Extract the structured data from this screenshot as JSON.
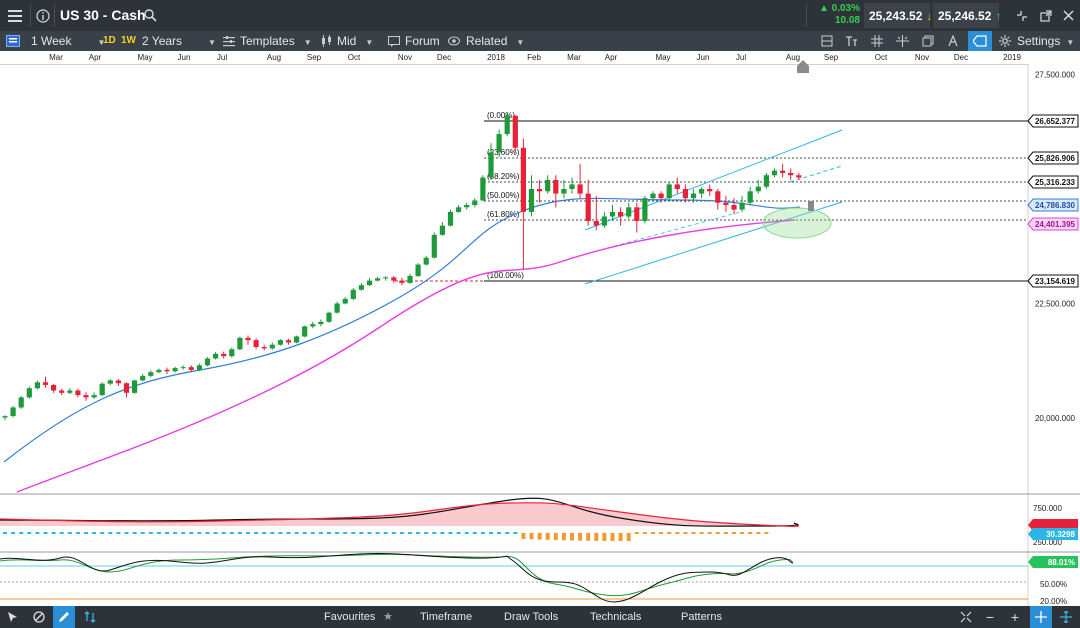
{
  "header": {
    "symbol": "US 30 - Cash",
    "change_pct": "▲ 0.03%",
    "change_pts": "10.08",
    "sell_price": "25,243.52",
    "buy_price": "25,246.52"
  },
  "toolbar": {
    "timeframe": "1 Week",
    "tf_1d": "1D",
    "tf_1w": "1W",
    "range": "2 Years",
    "templates": "Templates",
    "price_type": "Mid",
    "forum": "Forum",
    "related": "Related",
    "settings": "Settings"
  },
  "time_axis": [
    "Mar",
    "Apr",
    "May",
    "Jun",
    "Jul",
    "Aug",
    "Sep",
    "Oct",
    "Nov",
    "Dec",
    "2018",
    "Feb",
    "Mar",
    "Apr",
    "May",
    "Jun",
    "Jul",
    "Aug",
    "Sep",
    "Oct",
    "Nov",
    "Dec",
    "2019"
  ],
  "chart_data": {
    "type": "candlestick",
    "y_axis_labels": [
      "27,500.000",
      "22,500.000",
      "20,000.000"
    ],
    "price_tags": [
      {
        "label": "26,652.377",
        "kind": "fib"
      },
      {
        "label": "25,826.906",
        "kind": "fib"
      },
      {
        "label": "25,316.233",
        "kind": "fib"
      },
      {
        "label": "24,786.830",
        "kind": "ma_blue",
        "color": "#2f7fd8"
      },
      {
        "label": "24,401.395",
        "kind": "ma_magenta",
        "color": "#e83ce0"
      },
      {
        "label": "23,154.619",
        "kind": "fib"
      }
    ],
    "fibonacci_levels": [
      "(0.00%)",
      "(23.60%)",
      "(38.20%)",
      "(50.00%)",
      "(61.80%)",
      "(100.00%)"
    ],
    "candles": [
      [
        20010,
        20040,
        19950,
        20060
      ],
      [
        20045,
        20230,
        20010,
        20260
      ],
      [
        20230,
        20450,
        20200,
        20480
      ],
      [
        20450,
        20650,
        20420,
        20690
      ],
      [
        20650,
        20780,
        20620,
        20820
      ],
      [
        20780,
        20720,
        20660,
        20900
      ],
      [
        20720,
        20600,
        20550,
        20740
      ],
      [
        20600,
        20550,
        20500,
        20640
      ],
      [
        20550,
        20600,
        20520,
        20650
      ],
      [
        20600,
        20500,
        20450,
        20640
      ],
      [
        20500,
        20450,
        20380,
        20560
      ],
      [
        20450,
        20500,
        20420,
        20560
      ],
      [
        20500,
        20750,
        20480,
        20780
      ],
      [
        20750,
        20820,
        20720,
        20850
      ],
      [
        20820,
        20760,
        20700,
        20850
      ],
      [
        20760,
        20550,
        20450,
        20780
      ],
      [
        20550,
        20820,
        20530,
        20840
      ],
      [
        20820,
        20920,
        20800,
        20960
      ],
      [
        20920,
        21000,
        20890,
        21040
      ],
      [
        21000,
        21050,
        20980,
        21080
      ],
      [
        21050,
        21020,
        20960,
        21100
      ],
      [
        21020,
        21090,
        20990,
        21120
      ],
      [
        21090,
        21110,
        21060,
        21150
      ],
      [
        21110,
        21050,
        21000,
        21150
      ],
      [
        21050,
        21150,
        21020,
        21190
      ],
      [
        21150,
        21300,
        21130,
        21330
      ],
      [
        21300,
        21400,
        21280,
        21440
      ],
      [
        21400,
        21350,
        21300,
        21450
      ],
      [
        21350,
        21500,
        21320,
        21540
      ],
      [
        21500,
        21750,
        21480,
        21780
      ],
      [
        21750,
        21700,
        21600,
        21800
      ],
      [
        21700,
        21550,
        21500,
        21740
      ],
      [
        21550,
        21520,
        21480,
        21600
      ],
      [
        21520,
        21600,
        21490,
        21650
      ],
      [
        21600,
        21700,
        21580,
        21720
      ],
      [
        21700,
        21650,
        21600,
        21730
      ],
      [
        21650,
        21780,
        21630,
        21800
      ],
      [
        21780,
        22000,
        21760,
        22020
      ],
      [
        22000,
        22050,
        21960,
        22100
      ],
      [
        22050,
        22100,
        22000,
        22150
      ],
      [
        22100,
        22300,
        22080,
        22320
      ],
      [
        22300,
        22500,
        22280,
        22540
      ],
      [
        22500,
        22600,
        22480,
        22640
      ],
      [
        22600,
        22800,
        22580,
        22840
      ],
      [
        22800,
        22900,
        22780,
        22950
      ],
      [
        22900,
        23000,
        22880,
        23050
      ],
      [
        23000,
        23050,
        22980,
        23080
      ],
      [
        23050,
        23070,
        23000,
        23100
      ],
      [
        23070,
        23000,
        22950,
        23100
      ],
      [
        23000,
        22950,
        22900,
        23060
      ],
      [
        22950,
        23100,
        22930,
        23150
      ],
      [
        23100,
        23350,
        23080,
        23380
      ],
      [
        23350,
        23500,
        23330,
        23540
      ],
      [
        23500,
        24000,
        23480,
        24050
      ],
      [
        24000,
        24200,
        23980,
        24280
      ],
      [
        24200,
        24500,
        24180,
        24550
      ],
      [
        24500,
        24600,
        24480,
        24650
      ],
      [
        24600,
        24650,
        24550,
        24700
      ],
      [
        24650,
        24750,
        24600,
        24800
      ],
      [
        24750,
        25250,
        24730,
        25300
      ],
      [
        25250,
        25800,
        25200,
        26000
      ],
      [
        25800,
        26200,
        25700,
        26300
      ],
      [
        26200,
        26600,
        26150,
        26650
      ],
      [
        26600,
        25900,
        25800,
        26600
      ],
      [
        25900,
        24500,
        23250,
        26100
      ],
      [
        24500,
        25000,
        24400,
        25300
      ],
      [
        25000,
        24950,
        24700,
        25200
      ],
      [
        24950,
        25200,
        24900,
        25300
      ],
      [
        25200,
        24900,
        24600,
        25300
      ],
      [
        24900,
        25000,
        24800,
        25200
      ],
      [
        25000,
        25100,
        24900,
        25250
      ],
      [
        25100,
        24900,
        24800,
        25550
      ],
      [
        24900,
        24300,
        24200,
        25200
      ],
      [
        24300,
        24200,
        24100,
        24850
      ],
      [
        24200,
        24400,
        24150,
        24500
      ],
      [
        24400,
        24500,
        24300,
        24650
      ],
      [
        24500,
        24400,
        24200,
        24600
      ],
      [
        24400,
        24600,
        24350,
        24700
      ],
      [
        24600,
        24300,
        24050,
        24700
      ],
      [
        24300,
        24800,
        24250,
        24850
      ],
      [
        24800,
        24900,
        24750,
        24950
      ],
      [
        24900,
        24800,
        24700,
        24950
      ],
      [
        24800,
        25100,
        24750,
        25150
      ],
      [
        25100,
        25000,
        24900,
        25250
      ],
      [
        25000,
        24800,
        24700,
        25100
      ],
      [
        24800,
        24900,
        24700,
        25000
      ],
      [
        24900,
        25000,
        24800,
        25050
      ],
      [
        25000,
        24950,
        24850,
        25100
      ],
      [
        24950,
        24700,
        24550,
        25000
      ],
      [
        24700,
        24650,
        24500,
        24850
      ],
      [
        24650,
        24550,
        24450,
        24800
      ],
      [
        24550,
        24700,
        24500,
        24850
      ],
      [
        24700,
        24950,
        24650,
        25050
      ],
      [
        24950,
        25050,
        24900,
        25200
      ],
      [
        25050,
        25300,
        25000,
        25350
      ],
      [
        25300,
        25400,
        25250,
        25450
      ],
      [
        25400,
        25350,
        25250,
        25550
      ],
      [
        25350,
        25300,
        25200,
        25450
      ],
      [
        25300,
        25250,
        25200,
        25350
      ]
    ],
    "macd_axis_labels": [
      "750.000",
      "250.000"
    ],
    "macd_tags": [
      {
        "label": "",
        "color": "#e8213a"
      },
      {
        "label": "30.3298",
        "color": "#2bb6e8"
      }
    ],
    "stoch_axis_labels": [
      "50.00%",
      "20.00%"
    ],
    "stoch_tags": [
      {
        "label": "88.01%",
        "color": "#26c35c"
      }
    ],
    "colors": {
      "up": "#1f9a3a",
      "down": "#e8213a",
      "ma_fast": "#2f7fd8",
      "ma_slow": "#e83ce0",
      "channel": "#30b4e8",
      "ellipse": "#8fdc8f"
    }
  },
  "bottom": {
    "favourites": "Favourites",
    "timeframe": "Timeframe",
    "draw_tools": "Draw Tools",
    "technicals": "Technicals",
    "patterns": "Patterns"
  }
}
